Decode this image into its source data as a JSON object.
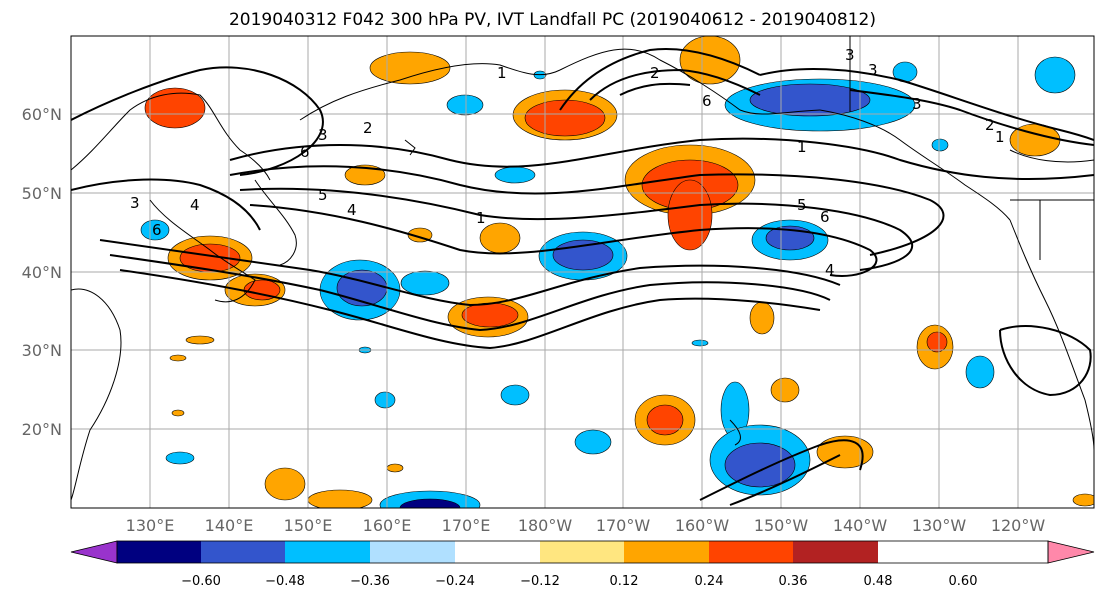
{
  "title": "2019040312 F042 300 hPa PV, IVT Landfall PC (2019040612 - 2019040812)",
  "map": {
    "lat_labels": [
      "60°N",
      "50°N",
      "40°N",
      "30°N",
      "20°N"
    ],
    "lon_labels": [
      "130°E",
      "140°E",
      "150°E",
      "160°E",
      "170°E",
      "180°W",
      "170°W",
      "160°W",
      "150°W",
      "140°W",
      "130°W",
      "120°W"
    ],
    "contour_labels": [
      "1",
      "2",
      "3",
      "6",
      "1",
      "3",
      "2",
      "1",
      "3",
      "6",
      "5",
      "4",
      "2",
      "4",
      "3",
      "6",
      "1",
      "5",
      "6",
      "4",
      "3"
    ]
  },
  "colorbar": {
    "tick_labels": [
      "−0.60",
      "−0.48",
      "−0.36",
      "−0.24",
      "−0.12",
      "0.12",
      "0.24",
      "0.36",
      "0.48",
      "0.60"
    ],
    "colors": [
      "#9933cc",
      "#000080",
      "#3355cc",
      "#00bfff",
      "#b0e0ff",
      "#ffffff",
      "#ffe680",
      "#ffa500",
      "#ff4400",
      "#b22222",
      "#ff88aa"
    ]
  }
}
